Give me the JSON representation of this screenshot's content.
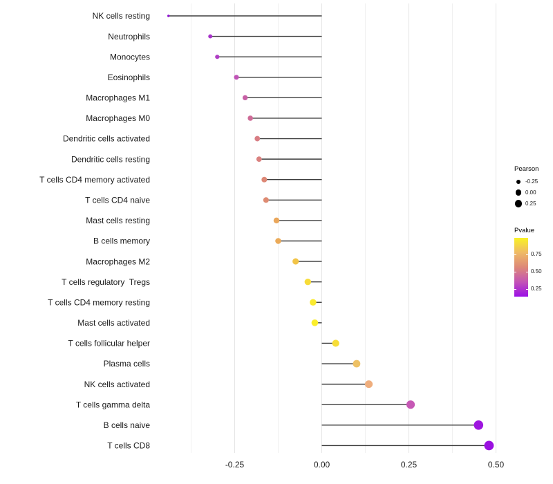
{
  "chart_data": {
    "type": "lollipop",
    "title": "",
    "xlabel": "",
    "ylabel": "",
    "grid": "vertical-only",
    "legend_position": "right",
    "xlim": [
      -0.49,
      0.53
    ],
    "x_ticks": [
      -0.25,
      0,
      0.25,
      0.5
    ],
    "x_tick_labels": [
      "-0.25",
      "0.00",
      "0.25",
      "0.50"
    ],
    "x_minor_ticks": [
      -0.375,
      -0.125,
      0.125,
      0.375
    ],
    "categories": [
      "NK cells resting",
      "Neutrophils",
      "Monocytes",
      "Eosinophils",
      "Macrophages M1",
      "Macrophages M0",
      "Dendritic cells activated",
      "Dendritic cells resting",
      "T cells CD4 memory activated",
      "T cells CD4 naive",
      "Mast cells resting",
      "B cells memory",
      "Macrophages M2",
      "T cells regulatory  Tregs",
      "T cells CD4 memory resting",
      "Mast cells activated",
      "T cells follicular helper",
      "Plasma cells",
      "NK cells activated",
      "T cells gamma delta",
      "B cells naive",
      "T cells CD8"
    ],
    "values": [
      -0.44,
      -0.32,
      -0.3,
      -0.245,
      -0.22,
      -0.205,
      -0.185,
      -0.18,
      -0.165,
      -0.16,
      -0.13,
      -0.125,
      -0.075,
      -0.04,
      -0.025,
      -0.02,
      0.04,
      0.1,
      0.135,
      0.255,
      0.45,
      0.48
    ],
    "point_colors": [
      "#8E0FD1",
      "#A733C9",
      "#B03DC5",
      "#C053B6",
      "#C75FA5",
      "#CE6B97",
      "#D87D84",
      "#DA8280",
      "#DD8876",
      "#DE8B72",
      "#EAA75C",
      "#EBAA58",
      "#F2C447",
      "#F7DC38",
      "#FAEA2F",
      "#FBEE2B",
      "#F7DD37",
      "#EEC165",
      "#EFAE7D",
      "#C658B5",
      "#9E15DF",
      "#9A10E0"
    ],
    "stem_color": "#3C3C3C",
    "size_by": "Pearson",
    "color_by": "Pvalue"
  },
  "legend": {
    "size": {
      "title": "Pearson",
      "entries": [
        {
          "label": "-0.25"
        },
        {
          "label": "0.00"
        },
        {
          "label": "0.25"
        }
      ]
    },
    "color": {
      "title": "Pvalue",
      "labels": [
        "0.75",
        "0.50",
        "0.25"
      ],
      "gradient_top_to_bottom": [
        "#F9F224",
        "#EFBA66",
        "#DD8878",
        "#C353B6",
        "#9B0FE6"
      ]
    }
  }
}
